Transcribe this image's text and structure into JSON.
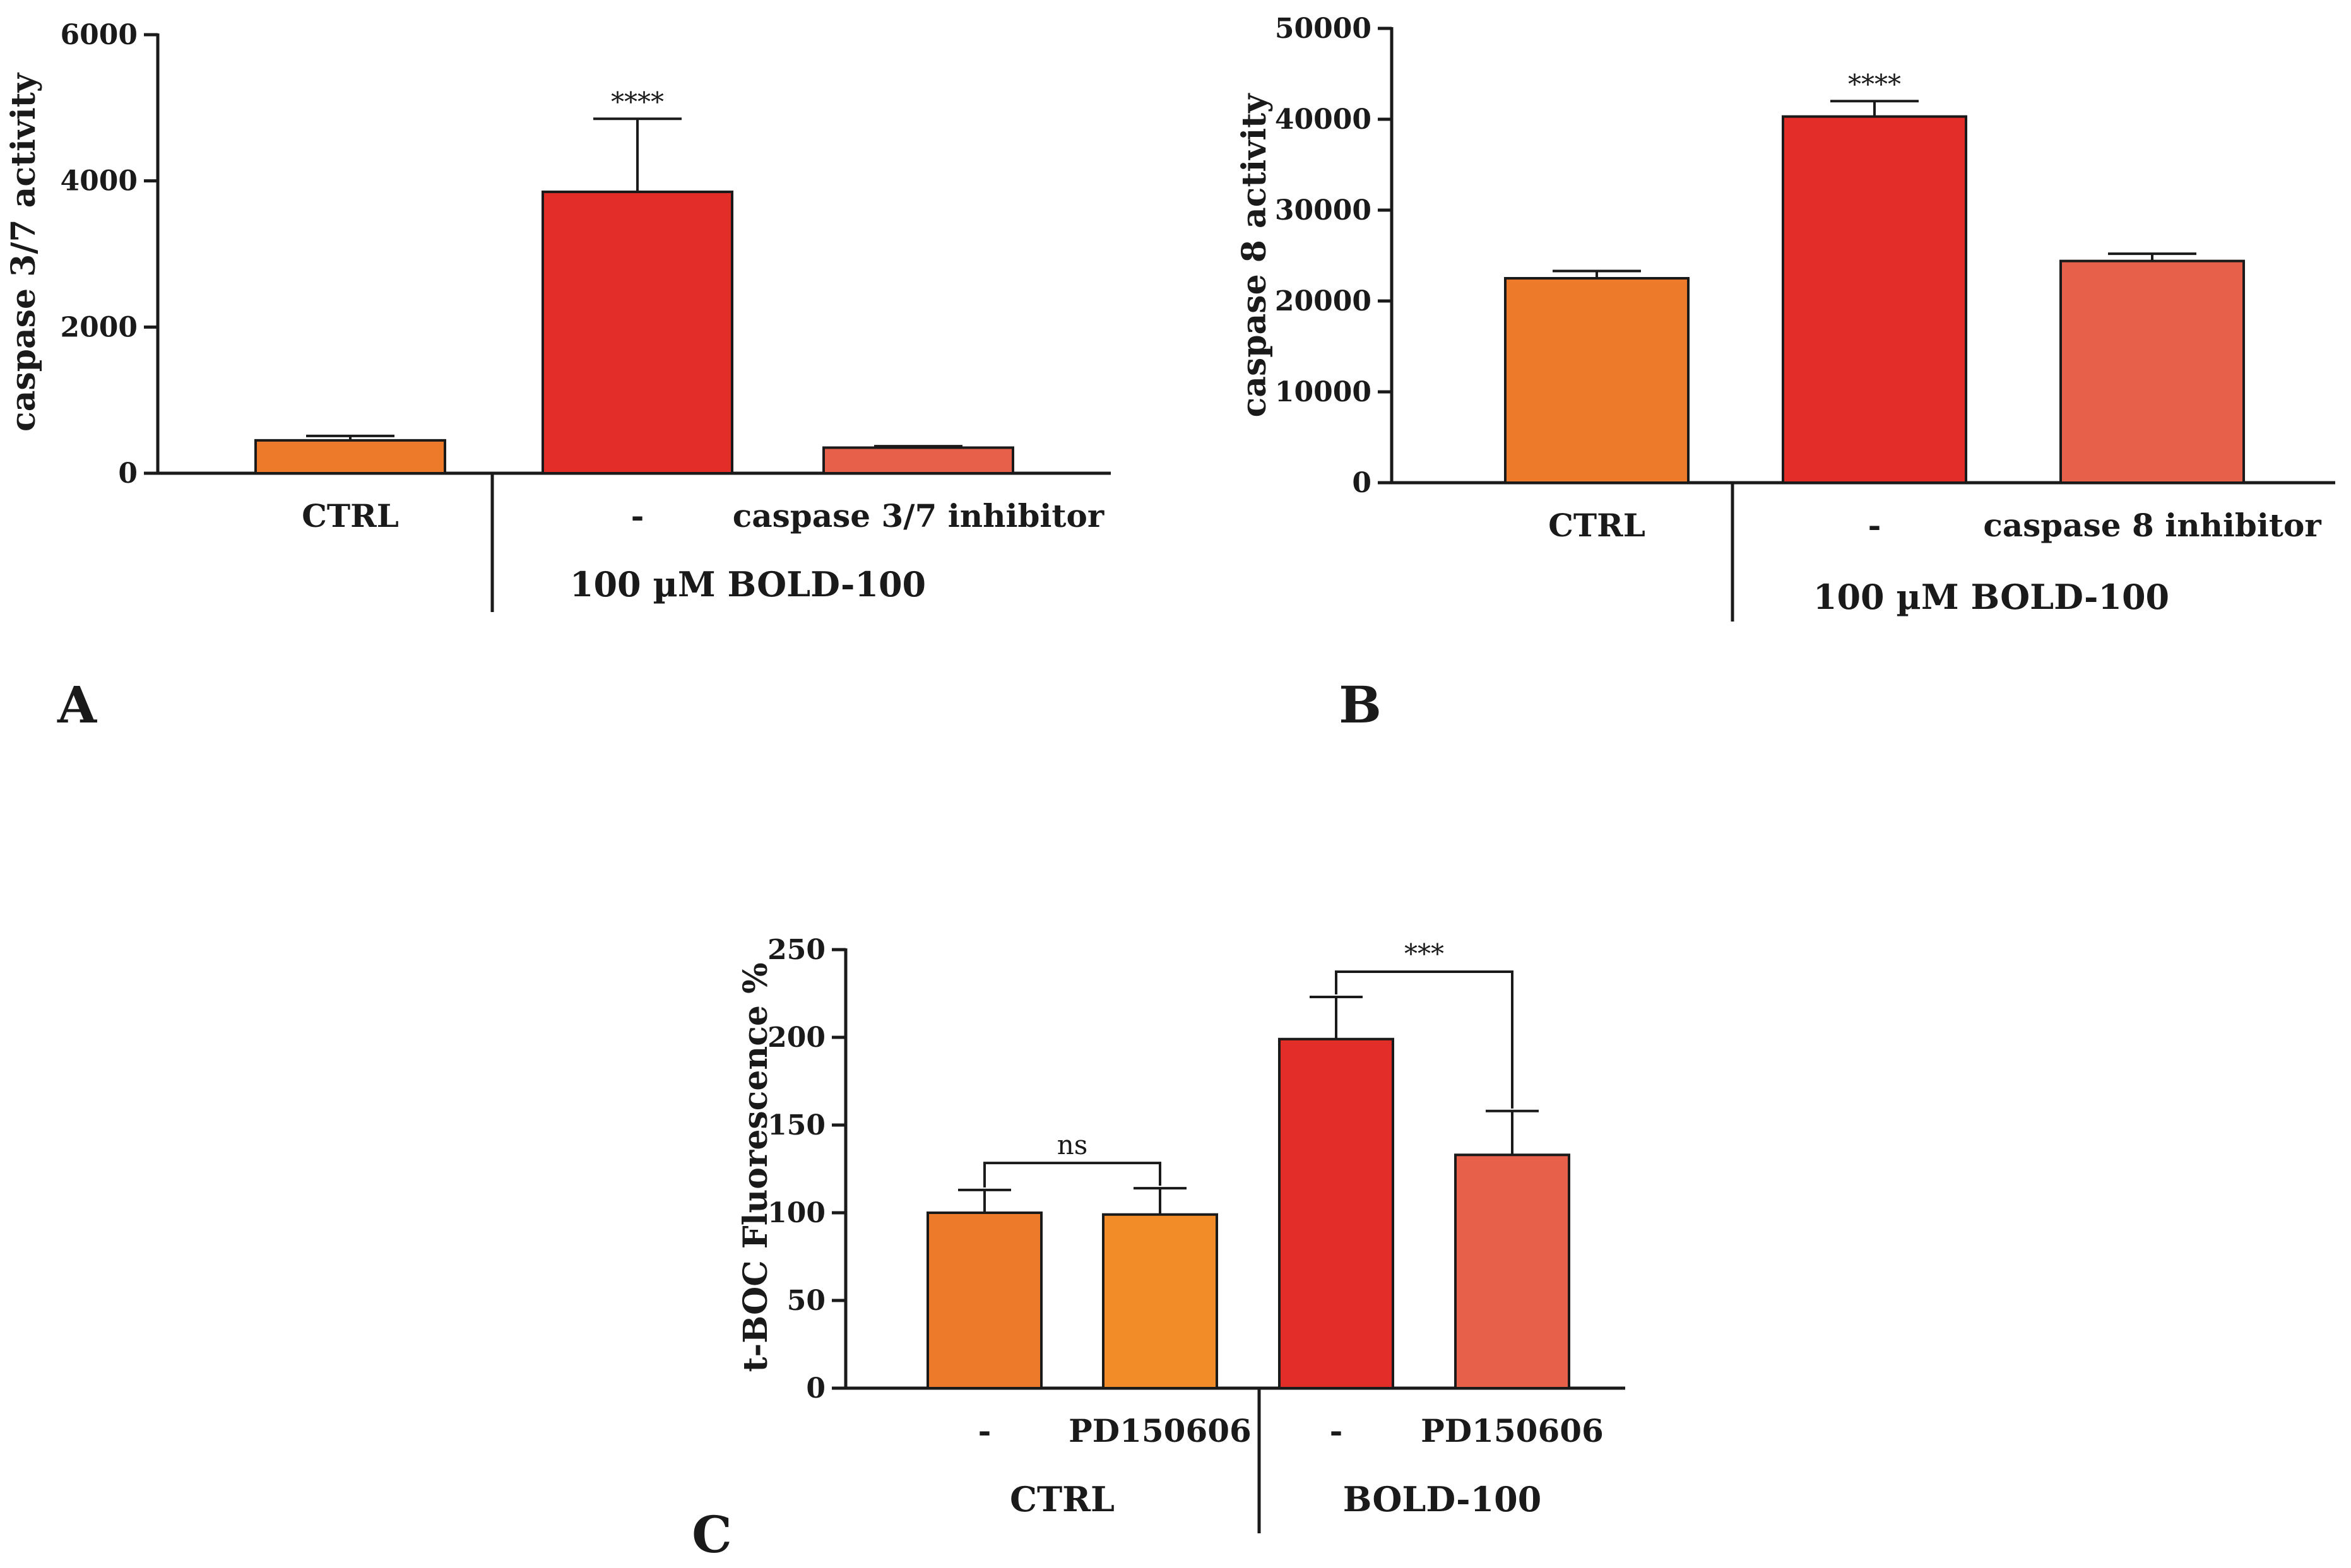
{
  "colors": {
    "ctrl": "#ED7A2A",
    "ctrl_pd": "#F28C28",
    "bold": "#E32D28",
    "inhibitor": "#E6604A"
  },
  "chart_data": [
    {
      "panel": "A",
      "type": "bar",
      "ylabel": "caspase 3/7 activity",
      "ylim": [
        0,
        6000
      ],
      "yticks": [
        0,
        2000,
        4000,
        6000
      ],
      "categories": [
        "CTRL",
        "-",
        "caspase 3/7 inhibitor"
      ],
      "values": [
        450,
        3850,
        350
      ],
      "errors": [
        60,
        1000,
        20
      ],
      "bar_colors": [
        "ctrl",
        "bold",
        "inhibitor"
      ],
      "significance": [
        {
          "bar": 1,
          "text": "****"
        }
      ],
      "group_label": "100 µM BOLD-100"
    },
    {
      "panel": "B",
      "type": "bar",
      "ylabel": "caspase 8 activity",
      "ylim": [
        0,
        50000
      ],
      "yticks": [
        0,
        10000,
        20000,
        30000,
        40000,
        50000
      ],
      "categories": [
        "CTRL",
        "-",
        "caspase 8 inhibitor"
      ],
      "values": [
        22500,
        40300,
        24400
      ],
      "errors": [
        800,
        1700,
        800
      ],
      "bar_colors": [
        "ctrl",
        "bold",
        "inhibitor"
      ],
      "significance": [
        {
          "bar": 1,
          "text": "****"
        }
      ],
      "group_label": "100 µM BOLD-100"
    },
    {
      "panel": "C",
      "type": "bar",
      "ylabel": "t-BOC Fluorescence %",
      "ylim": [
        0,
        250
      ],
      "yticks": [
        0,
        50,
        100,
        150,
        200,
        250
      ],
      "categories": [
        "-",
        "PD150606",
        "-",
        "PD150606"
      ],
      "values": [
        100,
        99,
        199,
        133
      ],
      "errors": [
        13,
        15,
        24,
        25
      ],
      "bar_colors": [
        "ctrl",
        "ctrl_pd",
        "bold",
        "inhibitor"
      ],
      "comparisons": [
        {
          "from": 0,
          "to": 1,
          "text": "ns"
        },
        {
          "from": 2,
          "to": 3,
          "text": "***"
        }
      ],
      "group_labels": [
        "CTRL",
        "BOLD-100"
      ]
    }
  ]
}
